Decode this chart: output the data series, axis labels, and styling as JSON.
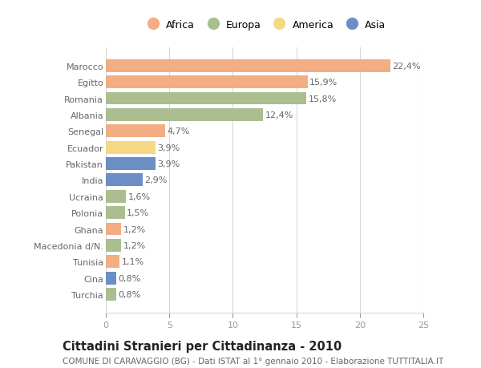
{
  "countries": [
    "Marocco",
    "Egitto",
    "Romania",
    "Albania",
    "Senegal",
    "Ecuador",
    "Pakistan",
    "India",
    "Ucraina",
    "Polonia",
    "Ghana",
    "Macedonia d/N.",
    "Tunisia",
    "Cina",
    "Turchia"
  ],
  "values": [
    22.4,
    15.9,
    15.8,
    12.4,
    4.7,
    3.9,
    3.9,
    2.9,
    1.6,
    1.5,
    1.2,
    1.2,
    1.1,
    0.8,
    0.8
  ],
  "labels": [
    "22,4%",
    "15,9%",
    "15,8%",
    "12,4%",
    "4,7%",
    "3,9%",
    "3,9%",
    "2,9%",
    "1,6%",
    "1,5%",
    "1,2%",
    "1,2%",
    "1,1%",
    "0,8%",
    "0,8%"
  ],
  "categories": [
    "Africa",
    "Africa",
    "Europa",
    "Europa",
    "Africa",
    "America",
    "Asia",
    "Asia",
    "Europa",
    "Europa",
    "Africa",
    "Europa",
    "Africa",
    "Asia",
    "Europa"
  ],
  "colors": {
    "Africa": "#F2AD82",
    "Europa": "#ABBE90",
    "America": "#F5D883",
    "Asia": "#6B8EC4"
  },
  "legend_items": [
    "Africa",
    "Europa",
    "America",
    "Asia"
  ],
  "title": "Cittadini Stranieri per Cittadinanza - 2010",
  "subtitle": "COMUNE DI CARAVAGGIO (BG) - Dati ISTAT al 1° gennaio 2010 - Elaborazione TUTTITALIA.IT",
  "xlim": [
    0,
    25
  ],
  "xticks": [
    0,
    5,
    10,
    15,
    20,
    25
  ],
  "bg_color": "#FFFFFF",
  "grid_color": "#D8D8D8",
  "bar_height": 0.78,
  "label_fontsize": 8,
  "title_fontsize": 10.5,
  "subtitle_fontsize": 7.5,
  "tick_fontsize": 8,
  "ytick_color": "#666666",
  "xtick_color": "#999999",
  "label_color": "#666666"
}
